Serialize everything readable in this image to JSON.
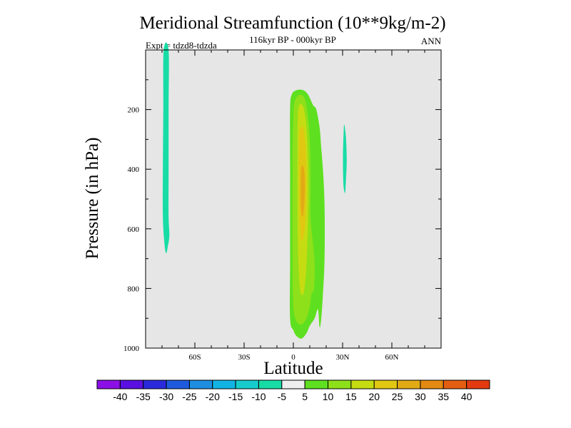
{
  "chart_data": {
    "type": "contour",
    "title": "Meridional Streamfunction (10**9kg/m-2)",
    "subtitle_center": "116kyr BP - 000kyr BP",
    "subtitle_left": "Expt = tdzd8-tdzda",
    "subtitle_right": "ANN",
    "xlabel": "Latitude",
    "ylabel": "Pressure (in hPa)",
    "xlim": [
      -90,
      90
    ],
    "ylim": [
      0,
      1000
    ],
    "x_ticks": [
      {
        "value": -60,
        "label": "60S"
      },
      {
        "value": -30,
        "label": "30S"
      },
      {
        "value": 0,
        "label": "0"
      },
      {
        "value": 30,
        "label": "30N"
      },
      {
        "value": 60,
        "label": "60N"
      }
    ],
    "y_ticks": [
      {
        "value": 200,
        "label": "200"
      },
      {
        "value": 400,
        "label": "400"
      },
      {
        "value": 600,
        "label": "600"
      },
      {
        "value": 800,
        "label": "800"
      },
      {
        "value": 1000,
        "label": "1000"
      }
    ],
    "background_color": "#e6e6e6",
    "colorbar": {
      "colors": [
        "#8c10e6",
        "#5a10e0",
        "#2a2adc",
        "#1e5ade",
        "#1e8ee0",
        "#12b4e4",
        "#16cccc",
        "#18dca6",
        "#eeeeee",
        "#5ee020",
        "#8ee01a",
        "#c6dc12",
        "#e0c812",
        "#e2aa14",
        "#e48a12",
        "#e45e12",
        "#e43a10"
      ],
      "labels": [
        "-40",
        "-35",
        "-30",
        "-25",
        "-20",
        "-15",
        "-10",
        "-5",
        "5",
        "10",
        "15",
        "20",
        "25",
        "30",
        "35",
        "40"
      ]
    },
    "regions": [
      {
        "name": "sh-negative-band",
        "level": -5,
        "color": "#18dca6",
        "points": [
          [
            -79,
            0
          ],
          [
            -76,
            0
          ],
          [
            -76,
            200
          ],
          [
            -76,
            420
          ],
          [
            -76,
            560
          ],
          [
            -75.5,
            620
          ],
          [
            -76.5,
            660
          ],
          [
            -77.5,
            682
          ],
          [
            -78.5,
            650
          ],
          [
            -79.5,
            560
          ],
          [
            -79.5,
            400
          ],
          [
            -79.2,
            200
          ]
        ]
      },
      {
        "name": "nh-negative-blob",
        "level": -5,
        "color": "#18dca6",
        "points": [
          [
            31,
            250
          ],
          [
            32,
            290
          ],
          [
            32.5,
            370
          ],
          [
            32,
            440
          ],
          [
            31.5,
            480
          ],
          [
            30.5,
            450
          ],
          [
            30.2,
            360
          ],
          [
            30.6,
            280
          ]
        ]
      },
      {
        "name": "main-cell-5",
        "level": 5,
        "color": "#5ee020",
        "points": [
          [
            -1,
            150
          ],
          [
            2,
            135
          ],
          [
            6,
            135
          ],
          [
            9,
            150
          ],
          [
            12,
            185
          ],
          [
            14,
            200
          ],
          [
            16,
            260
          ],
          [
            17,
            330
          ],
          [
            18,
            400
          ],
          [
            19,
            520
          ],
          [
            19,
            700
          ],
          [
            18,
            820
          ],
          [
            17,
            900
          ],
          [
            16,
            930
          ],
          [
            15,
            870
          ],
          [
            13,
            900
          ],
          [
            10,
            925
          ],
          [
            8,
            950
          ],
          [
            5,
            968
          ],
          [
            2,
            960
          ],
          [
            0,
            940
          ],
          [
            -2,
            900
          ],
          [
            -2,
            700
          ],
          [
            -2,
            400
          ],
          [
            -2,
            200
          ]
        ]
      },
      {
        "name": "main-cell-10",
        "level": 10,
        "color": "#8ee01a",
        "points": [
          [
            1,
            170
          ],
          [
            4,
            150
          ],
          [
            7,
            165
          ],
          [
            9,
            230
          ],
          [
            10,
            300
          ],
          [
            10.5,
            420
          ],
          [
            10.5,
            560
          ],
          [
            12,
            650
          ],
          [
            13,
            720
          ],
          [
            12.5,
            800
          ],
          [
            11,
            820
          ],
          [
            10,
            860
          ],
          [
            8,
            900
          ],
          [
            5,
            920
          ],
          [
            2,
            910
          ],
          [
            0,
            860
          ],
          [
            -0.5,
            700
          ],
          [
            -0.5,
            400
          ],
          [
            0,
            220
          ]
        ]
      },
      {
        "name": "main-cell-15",
        "level": 15,
        "color": "#c6dc12",
        "points": [
          [
            3,
            200
          ],
          [
            6,
            190
          ],
          [
            8,
            260
          ],
          [
            9,
            380
          ],
          [
            9,
            520
          ],
          [
            8.5,
            650
          ],
          [
            7.5,
            760
          ],
          [
            6,
            820
          ],
          [
            4,
            800
          ],
          [
            3,
            700
          ],
          [
            2.5,
            550
          ],
          [
            2.5,
            350
          ]
        ]
      },
      {
        "name": "main-cell-20",
        "level": 20,
        "color": "#e0c812",
        "points": [
          [
            4,
            270
          ],
          [
            6,
            260
          ],
          [
            7.5,
            330
          ],
          [
            8,
            450
          ],
          [
            7.5,
            560
          ],
          [
            6.5,
            620
          ],
          [
            5,
            640
          ],
          [
            4,
            580
          ],
          [
            3.5,
            450
          ],
          [
            3.5,
            330
          ]
        ]
      },
      {
        "name": "main-cell-25",
        "level": 25,
        "color": "#e2aa14",
        "points": [
          [
            5,
            390
          ],
          [
            6.5,
            400
          ],
          [
            7,
            460
          ],
          [
            6.5,
            530
          ],
          [
            5.5,
            560
          ],
          [
            4.5,
            520
          ],
          [
            4.5,
            440
          ]
        ]
      }
    ]
  }
}
